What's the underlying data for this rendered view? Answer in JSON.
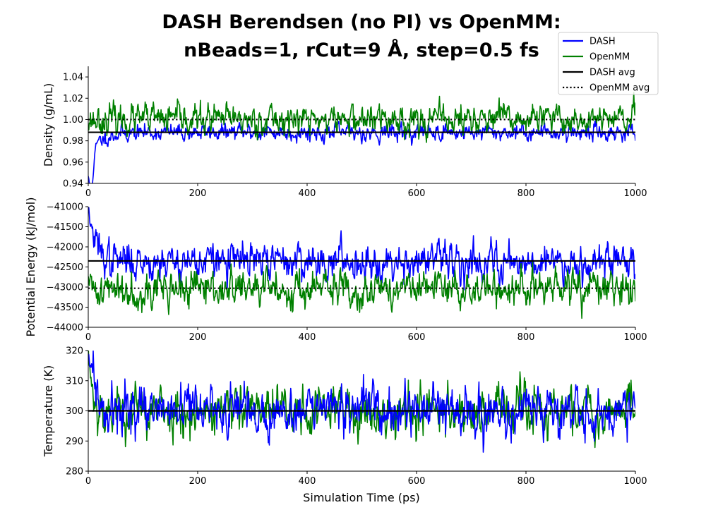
{
  "title_line1": "DASH Berendsen (no PI) vs OpenMM:",
  "title_line2": "nBeads=1, rCut=9 Å, step=0.5 fs",
  "xlabel": "Simulation Time (ps)",
  "legend": {
    "placement": "top-right",
    "entries": [
      {
        "label": "DASH",
        "color": "#0000ff",
        "style": "solid"
      },
      {
        "label": "OpenMM",
        "color": "#008000",
        "style": "solid"
      },
      {
        "label": "DASH avg",
        "color": "#000000",
        "style": "solid"
      },
      {
        "label": "OpenMM avg",
        "color": "#000000",
        "style": "dotted"
      }
    ]
  },
  "chart_data": [
    {
      "type": "line",
      "ylabel": "Density (g/mL)",
      "xlim": [
        0,
        1000
      ],
      "ylim": [
        0.94,
        1.05
      ],
      "xticks": [
        0,
        200,
        400,
        600,
        800,
        1000
      ],
      "yticks": [
        "0.94",
        "0.96",
        "0.98",
        "1.00",
        "1.02",
        "1.04"
      ],
      "ytick_values": [
        0.94,
        0.96,
        0.98,
        1.0,
        1.02,
        1.04
      ],
      "grid": false,
      "series": [
        {
          "name": "DASH",
          "color": "#0000ff",
          "mean": 0.988,
          "fluct": 0.004,
          "start": 0.965,
          "min_value": 0.952,
          "min_x": 5,
          "relax_ps": 20,
          "seed": 11
        },
        {
          "name": "OpenMM",
          "color": "#008000",
          "mean": 1.0,
          "fluct": 0.007,
          "start": 1.0,
          "seed": 23
        }
      ],
      "averages": [
        {
          "name": "DASH avg",
          "value": 0.988,
          "style": "solid"
        },
        {
          "name": "OpenMM avg",
          "value": 1.0,
          "style": "dotted"
        }
      ]
    },
    {
      "type": "line",
      "ylabel": "Potential Energy (kJ/mol)",
      "xlim": [
        0,
        1000
      ],
      "ylim": [
        -44000,
        -41000
      ],
      "xticks": [
        0,
        200,
        400,
        600,
        800,
        1000
      ],
      "yticks": [
        "−44000",
        "−43500",
        "−43000",
        "−42500",
        "−42000",
        "−41500",
        "−41000"
      ],
      "ytick_values": [
        -44000,
        -43500,
        -43000,
        -42500,
        -42000,
        -41500,
        -41000
      ],
      "grid": false,
      "series": [
        {
          "name": "DASH",
          "color": "#0000ff",
          "mean": -42350,
          "fluct": 230,
          "start": -41000,
          "relax_ps": 12,
          "seed": 37
        },
        {
          "name": "OpenMM",
          "color": "#008000",
          "mean": -43050,
          "fluct": 230,
          "start": -43100,
          "seed": 41
        }
      ],
      "averages": [
        {
          "name": "DASH avg",
          "value": -42350,
          "style": "solid"
        },
        {
          "name": "OpenMM avg",
          "value": -43030,
          "style": "dotted"
        }
      ]
    },
    {
      "type": "line",
      "ylabel": "Temperature (K)",
      "xlim": [
        0,
        1000
      ],
      "ylim": [
        280,
        320
      ],
      "xticks": [
        0,
        200,
        400,
        600,
        800,
        1000
      ],
      "yticks": [
        "280",
        "290",
        "300",
        "310",
        "320"
      ],
      "ytick_values": [
        280,
        290,
        300,
        310,
        320
      ],
      "grid": false,
      "series": [
        {
          "name": "OpenMM",
          "color": "#008000",
          "mean": 300,
          "fluct": 4.2,
          "start": 320,
          "relax_ps": 8,
          "seed": 53
        },
        {
          "name": "DASH",
          "color": "#0000ff",
          "mean": 300,
          "fluct": 4.0,
          "start": 320,
          "relax_ps": 10,
          "seed": 59
        }
      ],
      "averages": [
        {
          "name": "DASH avg",
          "value": 300,
          "style": "solid"
        },
        {
          "name": "OpenMM avg",
          "value": 300,
          "style": "dotted"
        }
      ]
    }
  ]
}
